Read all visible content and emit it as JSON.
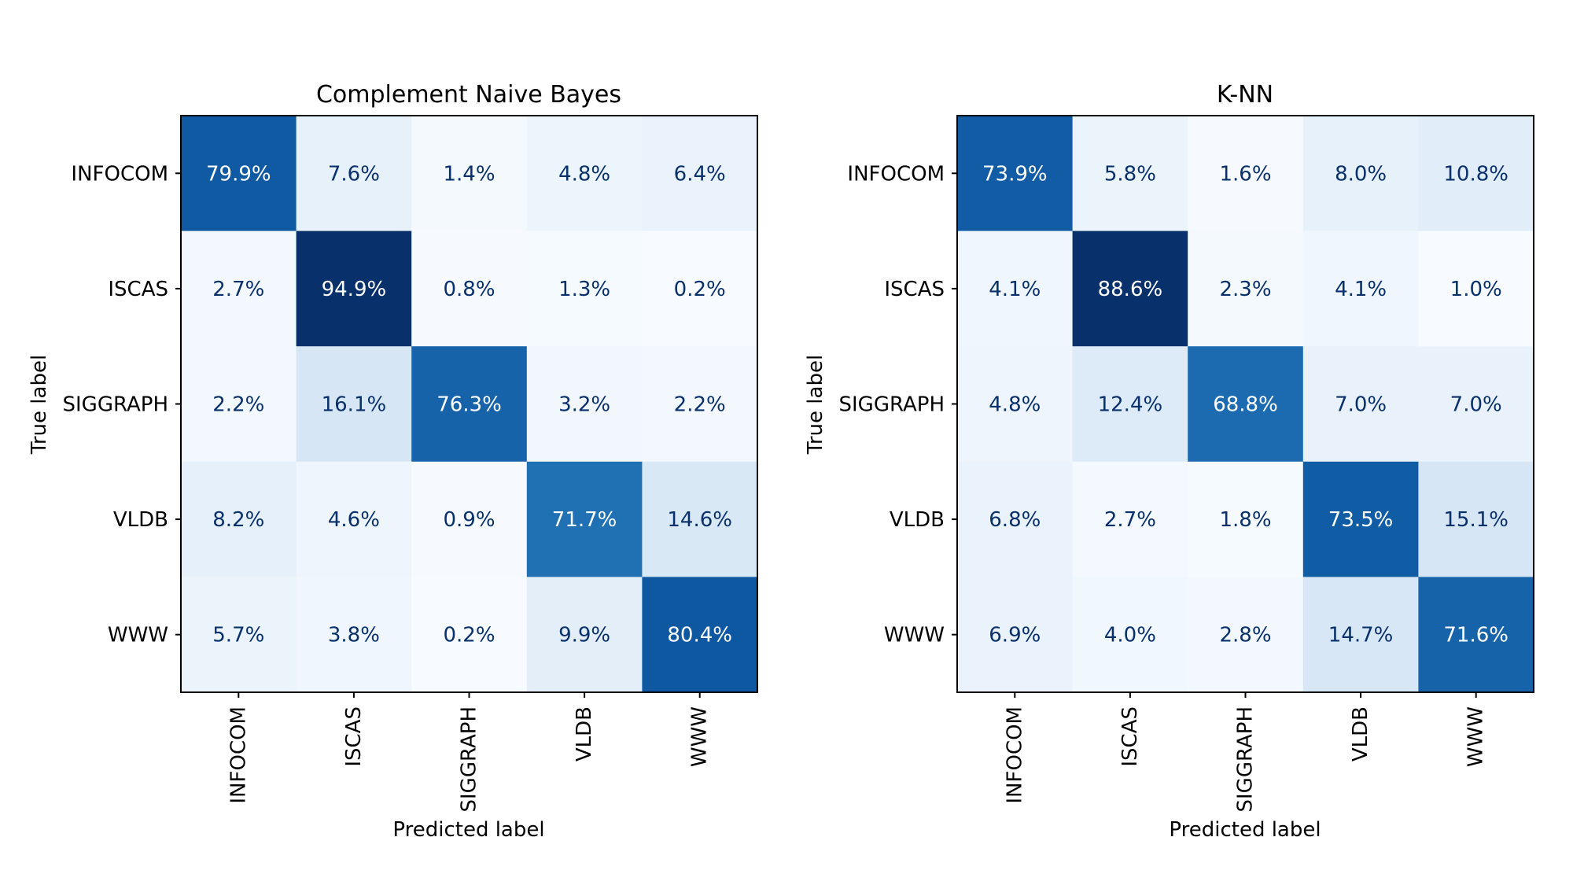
{
  "chart_data": [
    {
      "type": "heatmap",
      "title": "Complement Naive Bayes",
      "xlabel": "Predicted label",
      "ylabel": "True label",
      "x_categories": [
        "INFOCOM",
        "ISCAS",
        "SIGGRAPH",
        "VLDB",
        "WWW"
      ],
      "y_categories": [
        "INFOCOM",
        "ISCAS",
        "SIGGRAPH",
        "VLDB",
        "WWW"
      ],
      "values": [
        [
          79.9,
          7.6,
          1.4,
          4.8,
          6.4
        ],
        [
          2.7,
          94.9,
          0.8,
          1.3,
          0.2
        ],
        [
          2.2,
          16.1,
          76.3,
          3.2,
          2.2
        ],
        [
          8.2,
          4.6,
          0.9,
          71.7,
          14.6
        ],
        [
          5.7,
          3.8,
          0.2,
          9.9,
          80.4
        ]
      ],
      "value_labels": [
        [
          "79.9%",
          "7.6%",
          "1.4%",
          "4.8%",
          "6.4%"
        ],
        [
          "2.7%",
          "94.9%",
          "0.8%",
          "1.3%",
          "0.2%"
        ],
        [
          "2.2%",
          "16.1%",
          "76.3%",
          "3.2%",
          "2.2%"
        ],
        [
          "8.2%",
          "4.6%",
          "0.9%",
          "71.7%",
          "14.6%"
        ],
        [
          "5.7%",
          "3.8%",
          "0.2%",
          "9.9%",
          "80.4%"
        ]
      ],
      "colormap": "Blues",
      "grid": false,
      "colorbar": false
    },
    {
      "type": "heatmap",
      "title": "K-NN",
      "xlabel": "Predicted label",
      "ylabel": "True label",
      "x_categories": [
        "INFOCOM",
        "ISCAS",
        "SIGGRAPH",
        "VLDB",
        "WWW"
      ],
      "y_categories": [
        "INFOCOM",
        "ISCAS",
        "SIGGRAPH",
        "VLDB",
        "WWW"
      ],
      "values": [
        [
          73.9,
          5.8,
          1.6,
          8.0,
          10.8
        ],
        [
          4.1,
          88.6,
          2.3,
          4.1,
          1.0
        ],
        [
          4.8,
          12.4,
          68.8,
          7.0,
          7.0
        ],
        [
          6.8,
          2.7,
          1.8,
          73.5,
          15.1
        ],
        [
          6.9,
          4.0,
          2.8,
          14.7,
          71.6
        ]
      ],
      "value_labels": [
        [
          "73.9%",
          "5.8%",
          "1.6%",
          "8.0%",
          "10.8%"
        ],
        [
          "4.1%",
          "88.6%",
          "2.3%",
          "4.1%",
          "1.0%"
        ],
        [
          "4.8%",
          "12.4%",
          "68.8%",
          "7.0%",
          "7.0%"
        ],
        [
          "6.8%",
          "2.7%",
          "1.8%",
          "73.5%",
          "15.1%"
        ],
        [
          "6.9%",
          "4.0%",
          "2.8%",
          "14.7%",
          "71.6%"
        ]
      ],
      "colormap": "Blues",
      "grid": false,
      "colorbar": false
    }
  ]
}
